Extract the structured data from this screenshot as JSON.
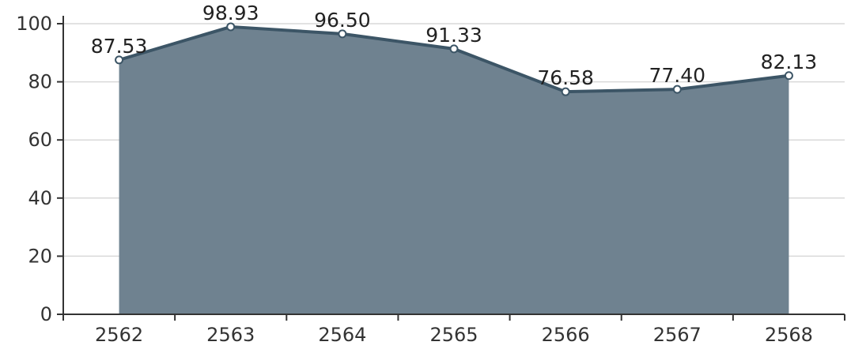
{
  "chart_data": {
    "type": "area",
    "categories": [
      "2562",
      "2563",
      "2564",
      "2565",
      "2566",
      "2567",
      "2568"
    ],
    "values": [
      87.53,
      98.93,
      96.5,
      91.33,
      76.58,
      77.4,
      82.13
    ],
    "value_labels": [
      "87.53",
      "98.93",
      "96.50",
      "91.33",
      "76.58",
      "77.40",
      "82.13"
    ],
    "y_ticks": [
      "0",
      "20",
      "40",
      "60",
      "80",
      "100"
    ],
    "ylim": [
      0,
      100
    ],
    "title": "",
    "xlabel": "",
    "ylabel": "",
    "grid": true,
    "legend": "none",
    "colors": {
      "area_fill": "#6f8290",
      "line": "#3c5566",
      "marker_fill": "#ffffff",
      "grid": "#d9d9d9",
      "axis": "#333333"
    }
  }
}
